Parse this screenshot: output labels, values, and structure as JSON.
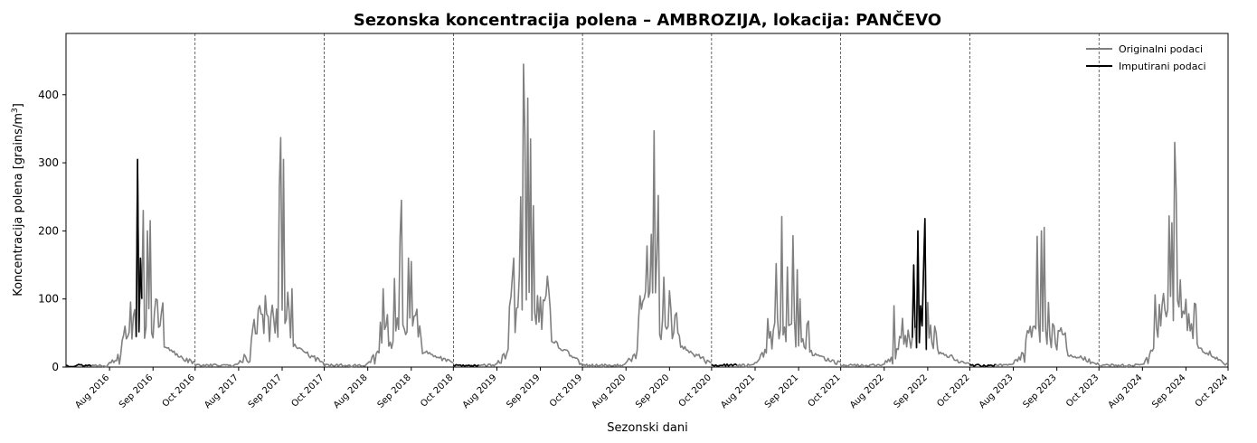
{
  "chart_data": {
    "type": "line",
    "title": "Sezonska koncentracija polena – AMBROZIJA, lokacija: PANČEVO",
    "xlabel": "Sezonski dani",
    "ylabel_main": "Koncentracija polena [grains/m",
    "ylabel_sup": "3",
    "ylabel_end": "]",
    "ylim": [
      0,
      490
    ],
    "yticks": [
      0,
      100,
      200,
      300,
      400
    ],
    "legend_position": "upper-right",
    "colors": {
      "original": "#808080",
      "imputed": "#000000",
      "separator": "#000000"
    },
    "seasons": [
      "2016",
      "2017",
      "2018",
      "2019",
      "2020",
      "2021",
      "2022",
      "2023",
      "2024"
    ],
    "xtick_labels": [
      "Aug 2016",
      "Sep 2016",
      "Oct 2016",
      "Aug 2017",
      "Sep 2017",
      "Oct 2017",
      "Aug 2018",
      "Sep 2018",
      "Oct 2018",
      "Aug 2019",
      "Sep 2019",
      "Oct 2019",
      "Aug 2020",
      "Sep 2020",
      "Oct 2020",
      "Aug 2021",
      "Sep 2021",
      "Oct 2021",
      "Aug 2022",
      "Sep 2022",
      "Oct 2022",
      "Aug 2023",
      "Sep 2023",
      "Oct 2023",
      "Aug 2024",
      "Sep 2024",
      "Oct 2024"
    ],
    "series": [
      {
        "name": "Originalni podaci",
        "color": "#808080"
      },
      {
        "name": "Imputirani podaci",
        "color": "#000000"
      }
    ],
    "peaks": [
      {
        "season": "2016",
        "original": [
          [
            42,
            60
          ],
          [
            48,
            75
          ],
          [
            55,
            230
          ],
          [
            58,
            200
          ],
          [
            60,
            215
          ],
          [
            64,
            100
          ]
        ],
        "imputed": [
          [
            51,
            305
          ],
          [
            53,
            160
          ]
        ]
      },
      {
        "season": "2017",
        "original": [
          [
            42,
            70
          ],
          [
            50,
            105
          ],
          [
            60,
            265
          ],
          [
            61,
            337
          ],
          [
            63,
            305
          ],
          [
            66,
            110
          ],
          [
            69,
            115
          ]
        ],
        "imputed": []
      },
      {
        "season": "2018",
        "original": [
          [
            42,
            115
          ],
          [
            50,
            130
          ],
          [
            54,
            190
          ],
          [
            55,
            245
          ],
          [
            60,
            160
          ],
          [
            62,
            155
          ],
          [
            66,
            85
          ]
        ],
        "imputed": []
      },
      {
        "season": "2019",
        "original": [
          [
            43,
            160
          ],
          [
            48,
            250
          ],
          [
            50,
            445
          ],
          [
            51,
            340
          ],
          [
            53,
            395
          ],
          [
            55,
            335
          ],
          [
            57,
            237
          ],
          [
            60,
            105
          ]
        ],
        "imputed": []
      },
      {
        "season": "2020",
        "original": [
          [
            42,
            85
          ],
          [
            46,
            178
          ],
          [
            49,
            195
          ],
          [
            51,
            347
          ],
          [
            53,
            165
          ],
          [
            54,
            252
          ],
          [
            58,
            132
          ]
        ],
        "imputed": []
      },
      {
        "season": "2021",
        "original": [
          [
            46,
            152
          ],
          [
            50,
            221
          ],
          [
            54,
            147
          ],
          [
            58,
            193
          ],
          [
            61,
            143
          ],
          [
            63,
            100
          ]
        ],
        "imputed": []
      },
      {
        "season": "2022",
        "original": [
          [
            38,
            90
          ],
          [
            59,
            110
          ],
          [
            62,
            95
          ]
        ],
        "imputed": [
          [
            52,
            150
          ],
          [
            55,
            200
          ],
          [
            57,
            90
          ],
          [
            59,
            140
          ],
          [
            60,
            218
          ]
        ]
      },
      {
        "season": "2023",
        "original": [
          [
            48,
            192
          ],
          [
            51,
            200
          ],
          [
            53,
            205
          ],
          [
            56,
            95
          ],
          [
            60,
            60
          ]
        ],
        "imputed": []
      },
      {
        "season": "2024",
        "original": [
          [
            46,
            108
          ],
          [
            50,
            222
          ],
          [
            52,
            212
          ],
          [
            54,
            330
          ],
          [
            55,
            258
          ],
          [
            58,
            128
          ],
          [
            60,
            82
          ]
        ],
        "imputed": []
      }
    ]
  }
}
